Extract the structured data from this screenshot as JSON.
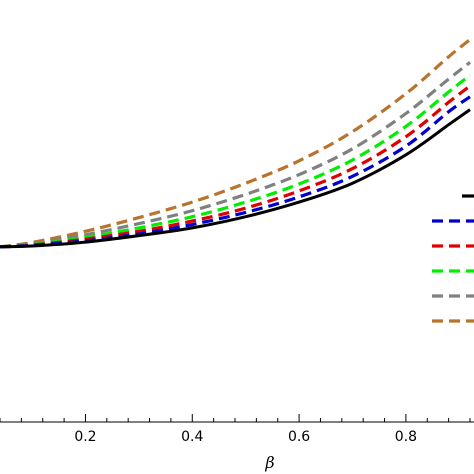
{
  "chart_data": {
    "type": "line",
    "xlabel": "β",
    "ylabel": "",
    "title": "",
    "xlim": [
      0.04,
      0.92
    ],
    "ylim": [
      0,
      1
    ],
    "xticks": [
      "0.2",
      "0.4",
      "0.6",
      "0.8"
    ],
    "legend": {
      "placement": "right",
      "entries_visible": 6
    },
    "series": [
      {
        "color": "#000000",
        "dash": "solid",
        "x": [
          0.04,
          0.1,
          0.2,
          0.3,
          0.4,
          0.5,
          0.6,
          0.7,
          0.8,
          0.88,
          0.92
        ],
        "y": [
          0.426,
          0.428,
          0.437,
          0.452,
          0.47,
          0.496,
          0.53,
          0.574,
          0.64,
          0.71,
          0.745
        ]
      },
      {
        "color": "#0000cc",
        "dash": "dashed",
        "x": [
          0.04,
          0.1,
          0.2,
          0.3,
          0.4,
          0.5,
          0.6,
          0.7,
          0.8,
          0.88,
          0.92
        ],
        "y": [
          0.426,
          0.429,
          0.44,
          0.456,
          0.478,
          0.506,
          0.542,
          0.59,
          0.66,
          0.74,
          0.775
        ]
      },
      {
        "color": "#e00000",
        "dash": "dashed",
        "x": [
          0.04,
          0.1,
          0.2,
          0.3,
          0.4,
          0.5,
          0.6,
          0.7,
          0.8,
          0.88,
          0.92
        ],
        "y": [
          0.426,
          0.43,
          0.444,
          0.462,
          0.486,
          0.516,
          0.556,
          0.608,
          0.682,
          0.762,
          0.8
        ]
      },
      {
        "color": "#00ee00",
        "dash": "dashed",
        "x": [
          0.04,
          0.1,
          0.2,
          0.3,
          0.4,
          0.5,
          0.6,
          0.7,
          0.8,
          0.88,
          0.92
        ],
        "y": [
          0.426,
          0.431,
          0.448,
          0.47,
          0.496,
          0.53,
          0.572,
          0.628,
          0.706,
          0.786,
          0.825
        ]
      },
      {
        "color": "#808080",
        "dash": "dashed",
        "x": [
          0.04,
          0.1,
          0.2,
          0.3,
          0.4,
          0.5,
          0.6,
          0.7,
          0.8,
          0.88,
          0.92
        ],
        "y": [
          0.426,
          0.433,
          0.454,
          0.48,
          0.51,
          0.548,
          0.594,
          0.654,
          0.736,
          0.816,
          0.855
        ]
      },
      {
        "color": "#b8732e",
        "dash": "dashed",
        "x": [
          0.04,
          0.1,
          0.2,
          0.3,
          0.4,
          0.5,
          0.6,
          0.7,
          0.8,
          0.88,
          0.92
        ],
        "y": [
          0.426,
          0.436,
          0.462,
          0.494,
          0.53,
          0.574,
          0.626,
          0.694,
          0.782,
          0.868,
          0.908
        ]
      }
    ]
  }
}
